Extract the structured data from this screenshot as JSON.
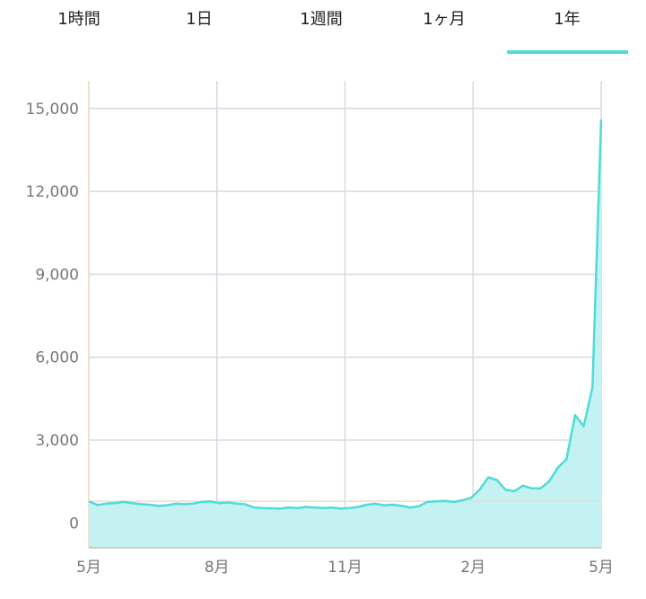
{
  "tabs": [
    "1時間",
    "1日",
    "1週間",
    "1ヶ月",
    "1年"
  ],
  "selected_tab": 4,
  "chart_data": {
    "type": "area",
    "x_labels": [
      "5月",
      "8月",
      "11月",
      "2月",
      "5月"
    ],
    "values": [
      780,
      650,
      700,
      720,
      760,
      720,
      680,
      660,
      620,
      640,
      700,
      680,
      700,
      760,
      780,
      720,
      740,
      700,
      680,
      560,
      540,
      530,
      520,
      560,
      540,
      580,
      560,
      540,
      560,
      520,
      540,
      580,
      660,
      700,
      640,
      660,
      620,
      560,
      600,
      760,
      780,
      800,
      760,
      820,
      900,
      1200,
      1650,
      1550,
      1200,
      1150,
      1350,
      1250,
      1250,
      1500,
      2000,
      2300,
      3900,
      3500,
      4900,
      14600
    ],
    "color": "#4fdbd9",
    "fill": "#c4f1f1",
    "reference_line": 780,
    "ylim": [
      -900,
      16000
    ],
    "yticks": [
      0,
      {
        "value": 3000,
        "label": "3,000"
      },
      {
        "value": 6000,
        "label": "6,000"
      },
      {
        "value": 9000,
        "label": "9,000"
      },
      {
        "value": 12000,
        "label": "12,000"
      },
      {
        "value": 15000,
        "label": "15,000"
      }
    ],
    "grid": true
  }
}
